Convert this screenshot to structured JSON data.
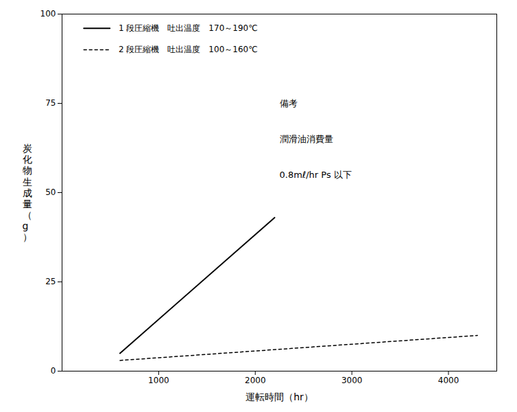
{
  "chart_data": {
    "type": "line",
    "xlabel": "運転時間（hr）",
    "ylabel": "炭化物生成量（g）",
    "series": [
      {
        "name": "1 段圧縮機　吐出温度　170～190℃",
        "color": "#000000",
        "line_style": "solid",
        "x": [
          600,
          2200
        ],
        "values": [
          5,
          43
        ]
      },
      {
        "name": "2 段圧縮機　吐出温度　100～160℃",
        "color": "#000000",
        "line_style": "dashed",
        "x": [
          600,
          4300
        ],
        "values": [
          3,
          10
        ]
      }
    ],
    "annotations": [
      "備考",
      "潤滑油消費量",
      "0.8mℓ/hr Ps 以下"
    ],
    "xlim": [
      0,
      4500
    ],
    "ylim": [
      0,
      100
    ],
    "xticks": [
      1000,
      2000,
      3000,
      4000
    ],
    "yticks": [
      0,
      25,
      50,
      75,
      100
    ],
    "grid": false,
    "legend": "upper left"
  }
}
